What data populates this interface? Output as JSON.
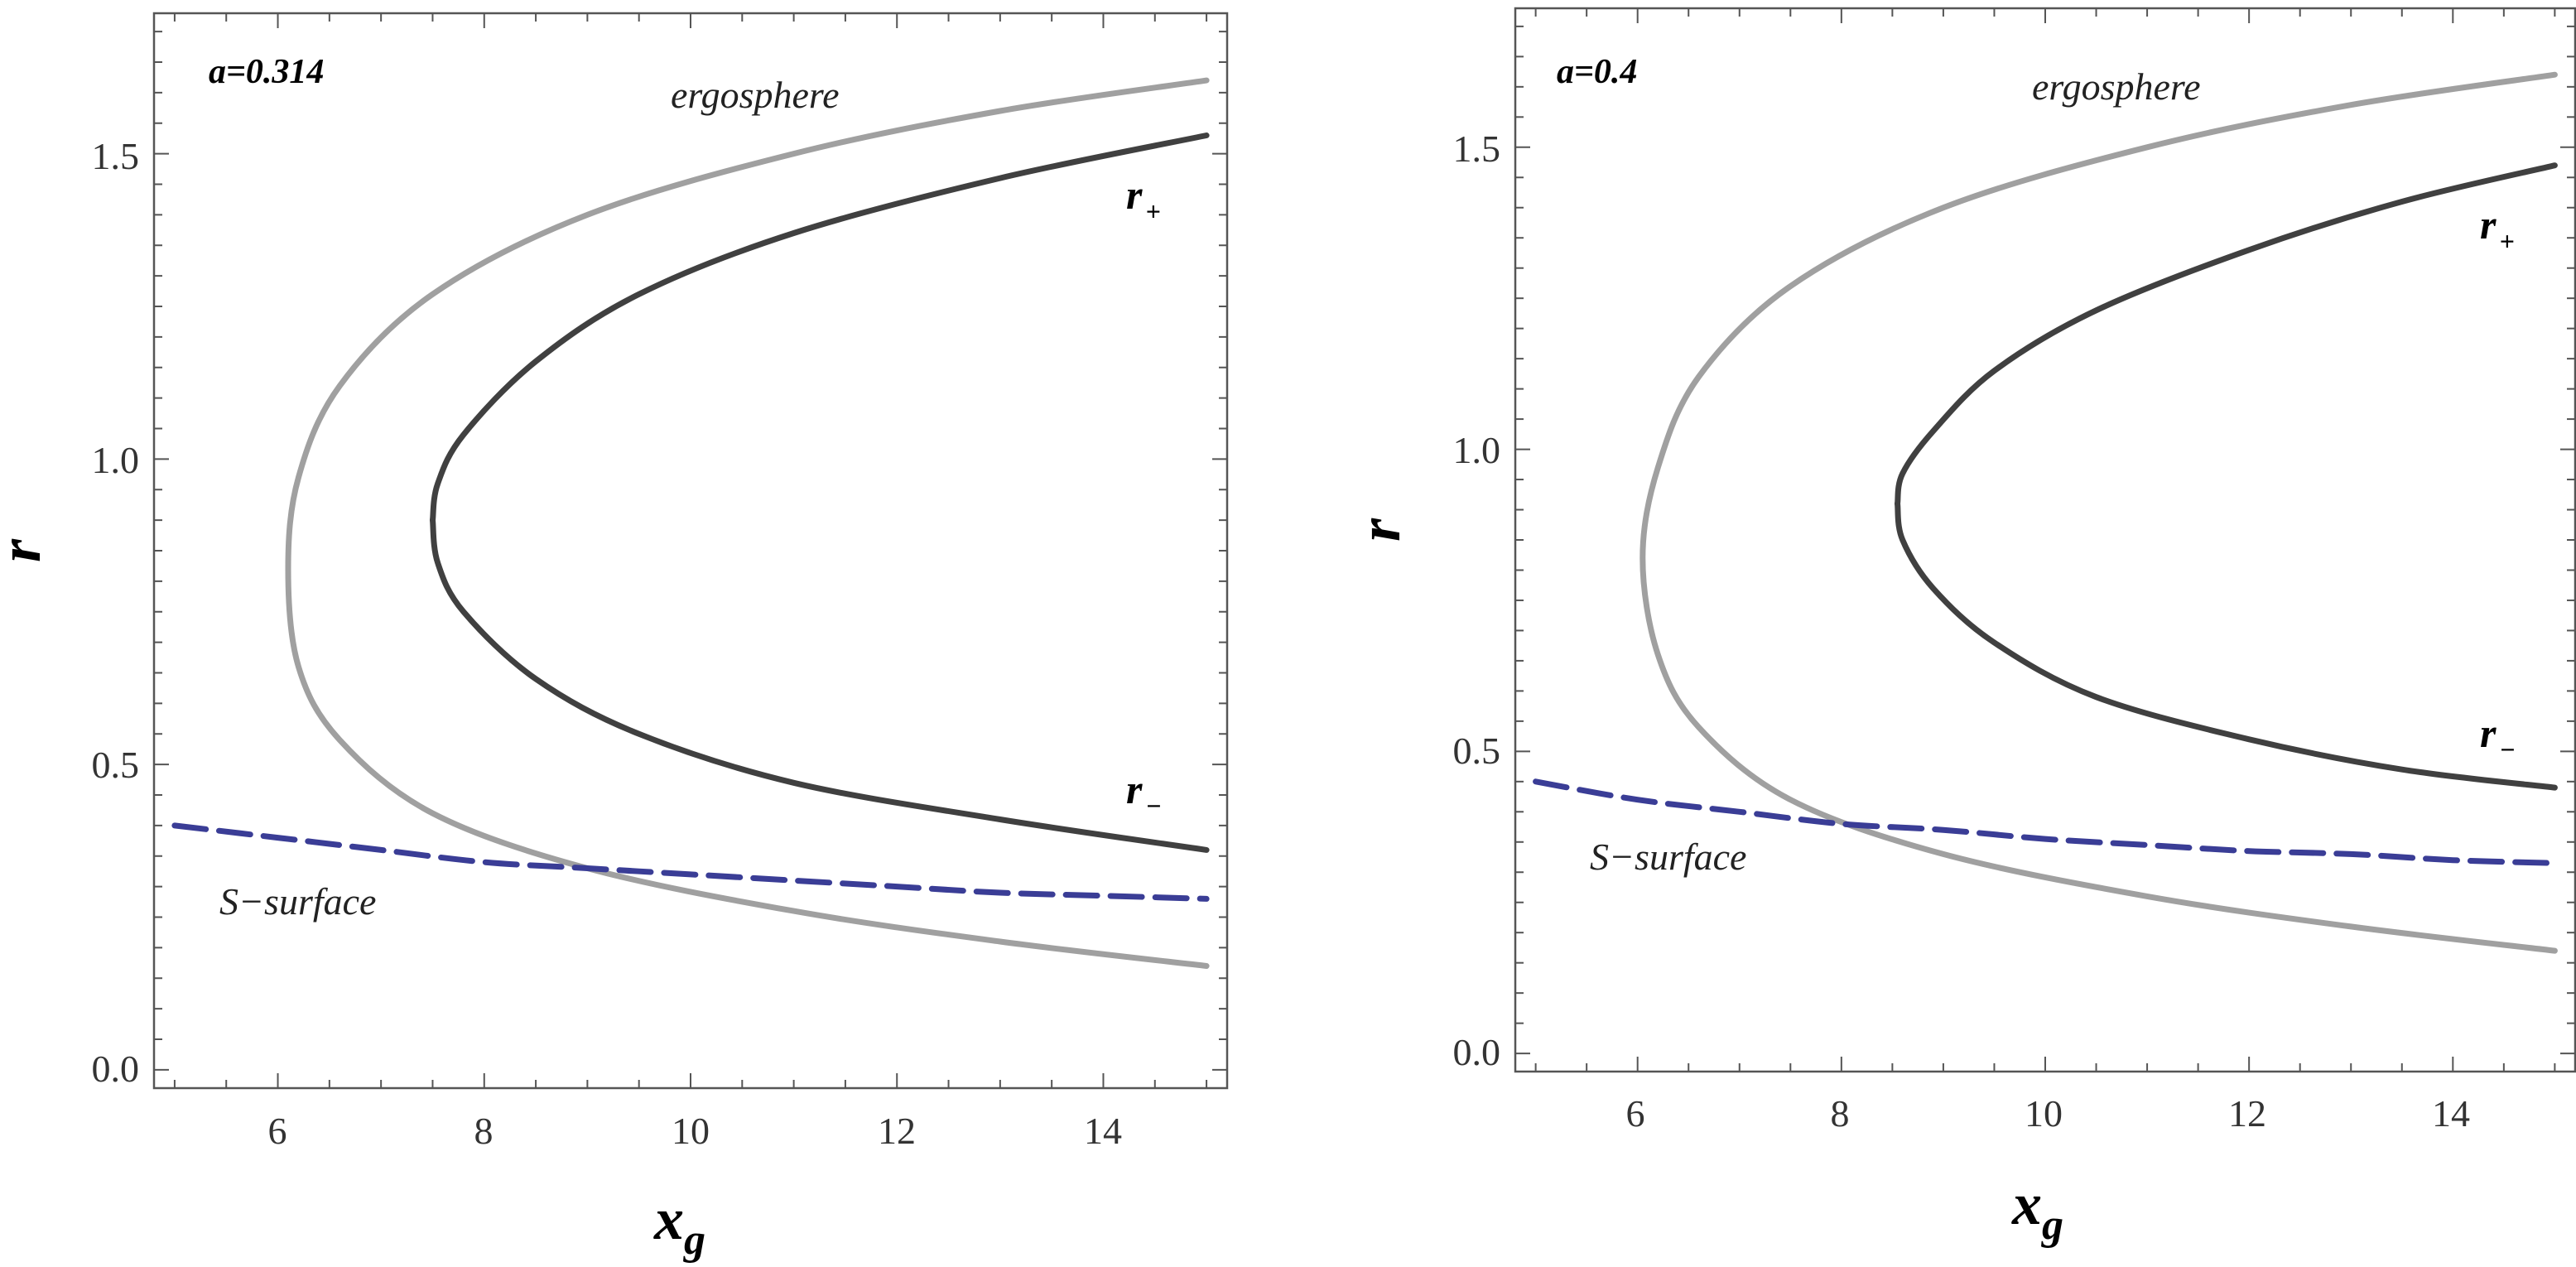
{
  "colors": {
    "ergosphere": "#a0a0a0",
    "r_plus": "#404040",
    "r_minus": "#404040",
    "s_surface": "#3a3d96",
    "frame": "#555555"
  },
  "chart_data": [
    {
      "type": "line",
      "param_label": "a=0.314",
      "xlabel": "x",
      "xlabel_sub": "g",
      "ylabel": "r",
      "xlim": [
        4.8,
        15.2
      ],
      "ylim": [
        -0.03,
        1.73
      ],
      "xticks": [
        6,
        8,
        10,
        12,
        14
      ],
      "xtick_labels": [
        "6",
        "8",
        "10",
        "12",
        "14"
      ],
      "yticks": [
        0.0,
        0.5,
        1.0,
        1.5
      ],
      "ytick_labels": [
        "0.0",
        "0.5",
        "1.0",
        "1.5"
      ],
      "annotations": {
        "ergosphere": "ergosphere",
        "r_plus": "r",
        "r_plus_sign": "+",
        "r_minus": "r",
        "r_minus_sign": "−",
        "s_surface": "S−surface"
      },
      "series": [
        {
          "name": "ergosphere",
          "style": "solid",
          "x": [
            15.0,
            13.0,
            11.0,
            9.0,
            7.5,
            6.6,
            6.2,
            6.1,
            6.2,
            6.6,
            7.5,
            9.0,
            11.0,
            13.0,
            15.0
          ],
          "y": [
            1.62,
            1.57,
            1.5,
            1.4,
            1.27,
            1.12,
            0.97,
            0.82,
            0.66,
            0.54,
            0.42,
            0.33,
            0.26,
            0.21,
            0.17
          ]
        },
        {
          "name": "r+",
          "style": "solid",
          "x": [
            15.0,
            13.0,
            11.0,
            9.5,
            8.5,
            7.8,
            7.55,
            7.5
          ],
          "y": [
            1.53,
            1.46,
            1.37,
            1.27,
            1.16,
            1.04,
            0.96,
            0.9
          ]
        },
        {
          "name": "r-",
          "style": "solid",
          "x": [
            7.5,
            7.55,
            7.8,
            8.5,
            9.5,
            11.0,
            13.0,
            15.0
          ],
          "y": [
            0.9,
            0.83,
            0.75,
            0.64,
            0.55,
            0.47,
            0.41,
            0.36
          ]
        },
        {
          "name": "S-surface",
          "style": "dashed",
          "x": [
            5.0,
            6.0,
            7.0,
            8.0,
            9.0,
            10.0,
            11.0,
            12.0,
            13.0,
            14.0,
            15.0
          ],
          "y": [
            0.4,
            0.38,
            0.36,
            0.34,
            0.33,
            0.32,
            0.31,
            0.3,
            0.29,
            0.285,
            0.28
          ]
        }
      ]
    },
    {
      "type": "line",
      "param_label": "a=0.4",
      "xlabel": "x",
      "xlabel_sub": "g",
      "ylabel": "r",
      "xlim": [
        4.8,
        15.2
      ],
      "ylim": [
        -0.03,
        1.73
      ],
      "xticks": [
        6,
        8,
        10,
        12,
        14
      ],
      "xtick_labels": [
        "6",
        "8",
        "10",
        "12",
        "14"
      ],
      "yticks": [
        0.0,
        0.5,
        1.0,
        1.5
      ],
      "ytick_labels": [
        "0.0",
        "0.5",
        "1.0",
        "1.5"
      ],
      "annotations": {
        "ergosphere": "ergosphere",
        "r_plus": "r",
        "r_plus_sign": "+",
        "r_minus": "r",
        "r_minus_sign": "−",
        "s_surface": "S−surface"
      },
      "series": [
        {
          "name": "ergosphere",
          "style": "solid",
          "x": [
            15.0,
            13.0,
            11.0,
            9.0,
            7.5,
            6.6,
            6.2,
            6.05,
            6.2,
            6.6,
            7.5,
            9.0,
            11.0,
            13.0,
            15.0
          ],
          "y": [
            1.62,
            1.57,
            1.5,
            1.4,
            1.27,
            1.12,
            0.97,
            0.82,
            0.66,
            0.54,
            0.42,
            0.33,
            0.26,
            0.21,
            0.17
          ]
        },
        {
          "name": "r+",
          "style": "solid",
          "x": [
            15.0,
            13.5,
            12.0,
            10.5,
            9.5,
            8.9,
            8.6,
            8.55
          ],
          "y": [
            1.47,
            1.41,
            1.33,
            1.23,
            1.13,
            1.03,
            0.96,
            0.91
          ]
        },
        {
          "name": "r-",
          "style": "solid",
          "x": [
            8.55,
            8.6,
            8.9,
            9.5,
            10.5,
            12.0,
            13.5,
            15.0
          ],
          "y": [
            0.91,
            0.85,
            0.77,
            0.68,
            0.59,
            0.52,
            0.47,
            0.44
          ]
        },
        {
          "name": "S-surface",
          "style": "dashed",
          "x": [
            5.0,
            6.0,
            7.0,
            8.0,
            9.0,
            10.0,
            11.0,
            12.0,
            13.0,
            14.0,
            15.0
          ],
          "y": [
            0.45,
            0.42,
            0.4,
            0.38,
            0.37,
            0.355,
            0.345,
            0.335,
            0.33,
            0.32,
            0.315
          ]
        }
      ]
    }
  ]
}
